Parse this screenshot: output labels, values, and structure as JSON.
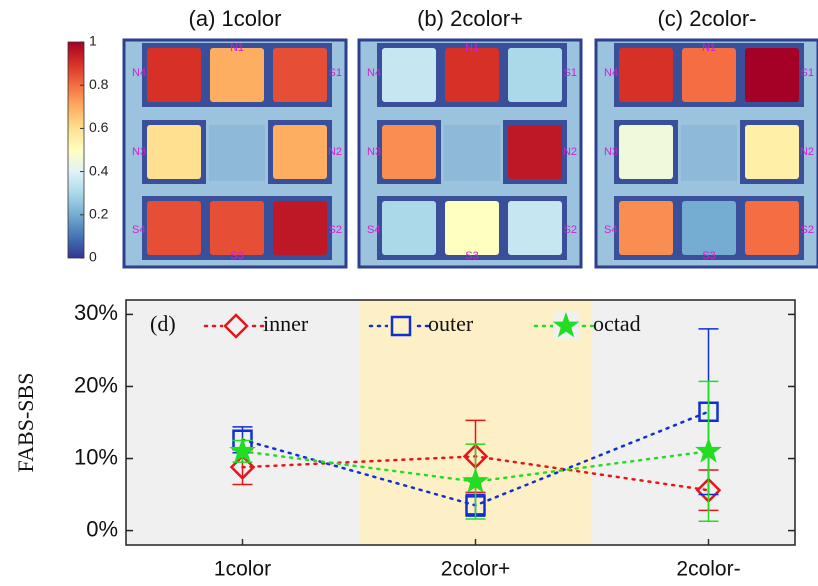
{
  "chart_data": [
    {
      "type": "colorbar",
      "ylim": [
        0,
        1
      ],
      "yticks": [
        0,
        0.2,
        0.4,
        0.6,
        0.8,
        1
      ]
    },
    {
      "type": "heatmap",
      "title": "(a) 1color",
      "categories": [
        "N4",
        "N1",
        "S1",
        "N3",
        "N2",
        "S4",
        "S3",
        "S2"
      ],
      "values": [
        0.9,
        0.7,
        0.85,
        0.6,
        0.7,
        0.85,
        0.85,
        0.95
      ]
    },
    {
      "type": "heatmap",
      "title": "(b) 2color+",
      "categories": [
        "N4",
        "N1",
        "S1",
        "N3",
        "N2",
        "S4",
        "S3",
        "S2"
      ],
      "values": [
        0.35,
        0.9,
        0.3,
        0.75,
        0.95,
        0.3,
        0.5,
        0.35
      ]
    },
    {
      "type": "heatmap",
      "title": "(c) 2color-",
      "categories": [
        "N4",
        "N1",
        "S1",
        "N3",
        "N2",
        "S4",
        "S3",
        "S2"
      ],
      "values": [
        0.9,
        0.8,
        1.0,
        0.45,
        0.55,
        0.75,
        0.2,
        0.8
      ]
    },
    {
      "type": "line",
      "annotation": "(d)",
      "y_label": "FABS-SBS",
      "categories": [
        "1color",
        "2color+",
        "2color-"
      ],
      "series": [
        {
          "name": "inner",
          "color": "#e8141b",
          "marker": "diamond",
          "values": [
            8.8,
            10.3,
            5.6
          ],
          "errors": [
            2.4,
            5.0,
            2.8
          ]
        },
        {
          "name": "outer",
          "color": "#1030d0",
          "marker": "square",
          "values": [
            12.6,
            3.5,
            16.5
          ],
          "errors": [
            1.8,
            1.5,
            11.5
          ]
        },
        {
          "name": "octad",
          "color": "#22dd22",
          "marker": "star",
          "values": [
            11.0,
            6.8,
            11.0
          ],
          "errors": [
            1.5,
            5.2,
            9.7
          ]
        }
      ],
      "ylim": [
        -2,
        32
      ],
      "yticks": [
        {
          "value": 0,
          "label": "0%"
        },
        {
          "value": 10,
          "label": "10%"
        },
        {
          "value": 20,
          "label": "20%"
        },
        {
          "value": 30,
          "label": "30%"
        }
      ]
    }
  ]
}
